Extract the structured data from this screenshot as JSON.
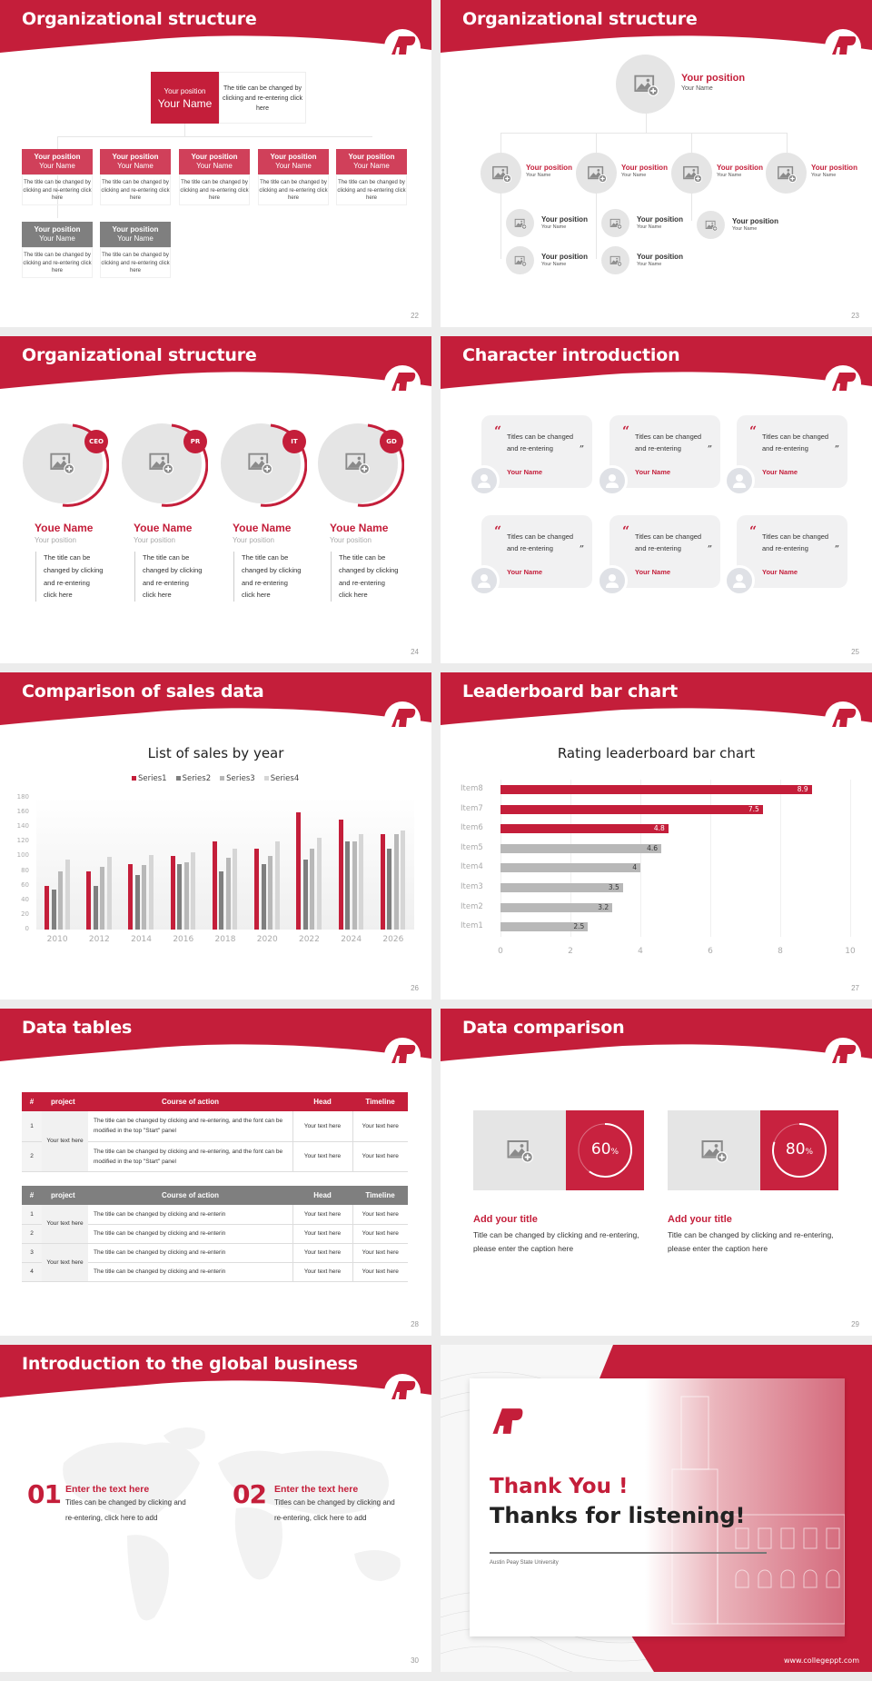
{
  "brand": {
    "accent": "#c41e3a",
    "gray_dark": "#7f7f7f",
    "gray_mid": "#a6a6a6",
    "gray_light": "#d0d0d0",
    "logo_text": "AP"
  },
  "slides": {
    "s22": {
      "title": "Organizational structure",
      "page": "22",
      "top": {
        "position": "Your position",
        "name": "Your Name",
        "desc": "The title can be changed by clicking and re-entering click here"
      },
      "cards": [
        {
          "position": "Your position",
          "name": "Your Name",
          "desc": "The title can be changed by clicking and re-entering click here",
          "style": "red"
        },
        {
          "position": "Your position",
          "name": "Your Name",
          "desc": "The title can be changed by clicking and re-entering click here",
          "style": "red"
        },
        {
          "position": "Your position",
          "name": "Your Name",
          "desc": "The title can be changed by clicking and re-entering click here",
          "style": "red"
        },
        {
          "position": "Your position",
          "name": "Your Name",
          "desc": "The title can be changed by clicking and re-entering click here",
          "style": "red"
        },
        {
          "position": "Your position",
          "name": "Your Name",
          "desc": "The title can be changed by clicking and re-entering click here",
          "style": "red"
        },
        {
          "position": "Your position",
          "name": "Your Name",
          "desc": "The title can be changed by clicking and re-entering click here",
          "style": "gray"
        },
        {
          "position": "Your position",
          "name": "Your Name",
          "desc": "The title can be changed by clicking and re-entering click here",
          "style": "gray"
        }
      ]
    },
    "s23": {
      "title": "Organizational structure",
      "page": "23",
      "top": {
        "position": "Your position",
        "name": "Your Name"
      },
      "level2": [
        {
          "position": "Your position",
          "name": "Your Name"
        },
        {
          "position": "Your position",
          "name": "Your Name"
        },
        {
          "position": "Your position",
          "name": "Your Name"
        },
        {
          "position": "Your position",
          "name": "Your Name"
        }
      ],
      "level3": [
        {
          "position": "Your position",
          "name": "Your Name"
        },
        {
          "position": "Your position",
          "name": "Your Name"
        },
        {
          "position": "Your position",
          "name": "Your Name"
        },
        {
          "position": "Your position",
          "name": "Your Name"
        },
        {
          "position": "Your position",
          "name": "Your Name"
        }
      ]
    },
    "s24": {
      "title": "Organizational structure",
      "page": "24",
      "people": [
        {
          "badge": "CEO",
          "name": "Youe Name",
          "position": "Your position",
          "desc": [
            "The title can be",
            "changed by clicking",
            "and re-entering",
            "click here"
          ]
        },
        {
          "badge": "PR",
          "name": "Youe Name",
          "position": "Your position",
          "desc": [
            "The title can be",
            "changed by clicking",
            "and re-entering",
            "click here"
          ]
        },
        {
          "badge": "IT",
          "name": "Youe Name",
          "position": "Your position",
          "desc": [
            "The title can be",
            "changed by clicking",
            "and re-entering",
            "click here"
          ]
        },
        {
          "badge": "GD",
          "name": "Youe Name",
          "position": "Your position",
          "desc": [
            "The title can be",
            "changed by clicking",
            "and re-entering",
            "click here"
          ]
        }
      ]
    },
    "s25": {
      "title": "Character introduction",
      "page": "25",
      "cards": [
        {
          "line1": "Titles can be changed",
          "line2": "and re-entering",
          "name": "Your Name"
        },
        {
          "line1": "Titles can be changed",
          "line2": "and re-entering",
          "name": "Your Name"
        },
        {
          "line1": "Titles can be changed",
          "line2": "and re-entering",
          "name": "Your Name"
        },
        {
          "line1": "Titles can be changed",
          "line2": "and re-entering",
          "name": "Your Name"
        },
        {
          "line1": "Titles can be changed",
          "line2": "and re-entering",
          "name": "Your Name"
        },
        {
          "line1": "Titles can be changed",
          "line2": "and re-entering",
          "name": "Your Name"
        }
      ],
      "open_quote": "“",
      "close_quote": "”"
    },
    "s26": {
      "title": "Comparison of sales data",
      "page": "26"
    },
    "s27": {
      "title": "Leaderboard bar chart",
      "page": "27"
    },
    "s28": {
      "title": "Data tables",
      "page": "28",
      "headers": [
        "#",
        "project",
        "Course of action",
        "Head",
        "Timeline"
      ],
      "table1": {
        "rows": [
          {
            "num": "1",
            "course": "The title can be changed by clicking and re-entering, and the font can be modified in the top \"Start\" panel",
            "head": "Your text here",
            "timeline": "Your text here"
          },
          {
            "num": "2",
            "course": "The title can be changed by clicking and re-entering, and the font can be modified in the top \"Start\" panel",
            "head": "Your text here",
            "timeline": "Your text here"
          }
        ],
        "project": "Your text here"
      },
      "table2": {
        "rows": [
          {
            "num": "1",
            "course": "The title can be changed by clicking and re-enterin",
            "head": "Your text here",
            "timeline": "Your text here"
          },
          {
            "num": "2",
            "course": "The title can be changed by clicking and re-enterin",
            "head": "Your text here",
            "timeline": "Your text here"
          },
          {
            "num": "3",
            "course": "The title can be changed by clicking and re-enterin",
            "head": "Your text here",
            "timeline": "Your text here"
          },
          {
            "num": "4",
            "course": "The title can be changed by clicking and re-enterin",
            "head": "Your text here",
            "timeline": "Your text here"
          }
        ],
        "projects": [
          "Your text here",
          "Your text here"
        ]
      }
    },
    "s29": {
      "title": "Data comparison",
      "page": "29",
      "items": [
        {
          "percent": "60",
          "unit": "%",
          "value": 60,
          "heading": "Add your title",
          "text": "Title can be changed by clicking and re-entering, please enter the caption here"
        },
        {
          "percent": "80",
          "unit": "%",
          "value": 80,
          "heading": "Add your title",
          "text": "Title can be changed by clicking and re-entering, please enter the caption here"
        }
      ]
    },
    "s30": {
      "title": "Introduction to the global business",
      "page": "30",
      "items": [
        {
          "num": "01",
          "heading": "Enter the text here",
          "text": "Titles can be changed by clicking and re-entering, click here to add"
        },
        {
          "num": "02",
          "heading": "Enter the text here",
          "text": "Titles can be changed by clicking and re-entering, click here to add"
        }
      ]
    },
    "s31": {
      "thank_you": "Thank You !",
      "thanks": "Thanks for listening!",
      "university": "Austin Peay State University",
      "website": "www.collegeppt.com"
    }
  },
  "chart_data": [
    {
      "type": "bar",
      "title": "List of sales by year",
      "categories": [
        "2010",
        "2012",
        "2014",
        "2016",
        "2018",
        "2020",
        "2022",
        "2024",
        "2026"
      ],
      "series": [
        {
          "name": "Series1",
          "color": "#c41e3a",
          "values": [
            60,
            80,
            90,
            100,
            120,
            110,
            160,
            150,
            130
          ]
        },
        {
          "name": "Series2",
          "color": "#7f7f7f",
          "values": [
            55,
            60,
            75,
            90,
            80,
            90,
            96,
            120,
            110
          ]
        },
        {
          "name": "Series3",
          "color": "#b8b8b8",
          "values": [
            80,
            86,
            88,
            92,
            98,
            100,
            110,
            120,
            130
          ]
        },
        {
          "name": "Series4",
          "color": "#d6d6d6",
          "values": [
            95,
            99,
            102,
            105,
            110,
            120,
            126,
            130,
            135
          ]
        }
      ],
      "yticks": [
        "0",
        "20",
        "40",
        "60",
        "80",
        "100",
        "120",
        "140",
        "160",
        "180"
      ],
      "ylim": [
        0,
        180
      ],
      "xlabel": "",
      "ylabel": "",
      "legend_position": "top",
      "grid": true
    },
    {
      "type": "bar",
      "orientation": "horizontal",
      "title": "Rating leaderboard bar chart",
      "categories": [
        "Item8",
        "Item7",
        "Item6",
        "Item5",
        "Item4",
        "Item3",
        "Item2",
        "Item1"
      ],
      "values": [
        8.9,
        7.5,
        4.8,
        4.6,
        4,
        3.5,
        3.2,
        2.5
      ],
      "labels": [
        "8.9",
        "7.5",
        "4.8",
        "4.6",
        "4",
        "3.5",
        "3.2",
        "2.5"
      ],
      "colors": [
        "#c41e3a",
        "#c41e3a",
        "#c41e3a",
        "#b8b8b8",
        "#b8b8b8",
        "#b8b8b8",
        "#b8b8b8",
        "#b8b8b8"
      ],
      "xticks": [
        "0",
        "2",
        "4",
        "6",
        "8",
        "10"
      ],
      "xlim": [
        0,
        10
      ],
      "grid": true
    }
  ]
}
